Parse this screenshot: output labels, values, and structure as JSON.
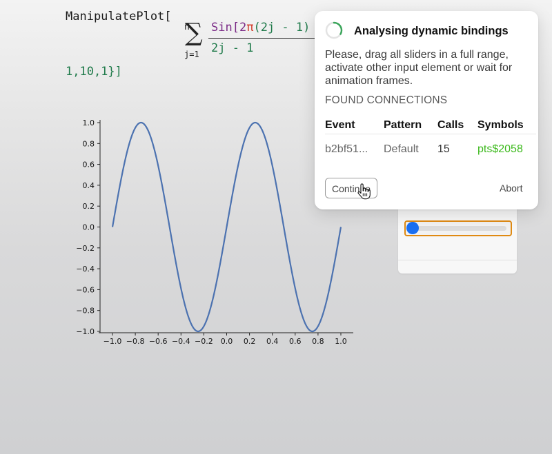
{
  "code": {
    "fn_name": "ManipulatePlot[",
    "sum_upper": "n",
    "sigma": "∑",
    "sum_lower": "j=1",
    "numerator_fn": "Sin",
    "numerator_open": "[2",
    "numerator_pi": "π",
    "numerator_rest": "(2j - 1)",
    "denominator": "2j - 1",
    "line3": "1,10,1}]"
  },
  "plot": {
    "line_color": "#4c72b0"
  },
  "chart_data": {
    "type": "line",
    "function": "sin(2πx)",
    "x": [
      -1.0,
      -0.75,
      -0.5,
      -0.25,
      0.0,
      0.25,
      0.5,
      0.75,
      1.0
    ],
    "y": [
      0.0,
      1.0,
      0.0,
      -1.0,
      0.0,
      1.0,
      0.0,
      -1.0,
      0.0
    ],
    "xlim": [
      -1.0,
      1.0
    ],
    "ylim": [
      -1.0,
      1.0
    ],
    "xticks": [
      "−1.0",
      "−0.8",
      "−0.6",
      "−0.4",
      "−0.2",
      "0.0",
      "0.2",
      "0.4",
      "0.6",
      "0.8",
      "1.0"
    ],
    "yticks": [
      "1.0",
      "0.8",
      "0.6",
      "0.4",
      "0.2",
      "0.0",
      "−0.2",
      "−0.4",
      "−0.6",
      "−0.8",
      "−1.0"
    ],
    "grid": false
  },
  "slider": {
    "value": 0.0,
    "accent": "#1a6ff2",
    "border": "#e08a12"
  },
  "dialog": {
    "title": "Analysing dynamic bindings",
    "description": "Please, drag all sliders in a full range, activate other input element or wait for animation frames.",
    "section": "FOUND CONNECTIONS",
    "columns": [
      "Event",
      "Pattern",
      "Calls",
      "Symbols"
    ],
    "rows": [
      {
        "event": "b2bf51...",
        "pattern": "Default",
        "calls": "15",
        "symbols": "pts$2058"
      }
    ],
    "continue_label": "Continue",
    "abort_label": "Abort",
    "symbol_color": "#3cb91c"
  }
}
